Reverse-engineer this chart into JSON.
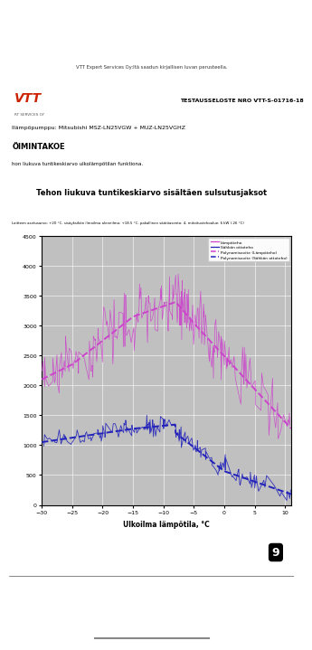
{
  "title": "Tehon liukuva tuntikeskiarvo sisältäen sulsutusjaksot",
  "subtitle": "Laitteen asetusarvo: +20 °C, sisäyksikön ilmailma alennilma: +18.5 °C, pakallinen säätöasento: 4, mitoitustehoalue: 6 kW (-26 °C)",
  "header_text": "TESTAUSSELOSTE NRO VTT-S-01716-18",
  "model_text": "Ilämpöpumppu: Mitsubishi MSZ-LN25VGW + MUZ-LN25VGHZ",
  "mode_text": "ÖIMINTAKOE",
  "desc_text": "hon liukuva tuntikeskiarvo ulkolämpötilan funktiona.",
  "vtt_text": "VTT",
  "services_text": "RT SERVICES OY",
  "copyright_text": "VTT Expert Services Oy:ltä saadun kirjallisen luvan perusteella.",
  "xlabel": "Ulkoilma lämpötila, °C",
  "xlim": [
    -30,
    11
  ],
  "ylim": [
    0,
    4500
  ],
  "yticks": [
    0,
    500,
    1000,
    1500,
    2000,
    2500,
    3000,
    3500,
    4000,
    4500
  ],
  "xticks": [
    -30,
    -25,
    -20,
    -15,
    -10,
    -5,
    0,
    5,
    10
  ],
  "legend_labels": [
    "Lämpöteho",
    "Sähkön ottoteho",
    "Polynomisovite (Lämpöteho)",
    "Polynomisovite (Sähkön ottoteho)"
  ],
  "bg_color": "#c0c0c0",
  "page_bg": "#ffffff",
  "pink_color": "#cc44cc",
  "blue_color": "#2222bb",
  "toolbar_bg": "#1a1a1a",
  "bottom_bg": "#2a2a2a"
}
